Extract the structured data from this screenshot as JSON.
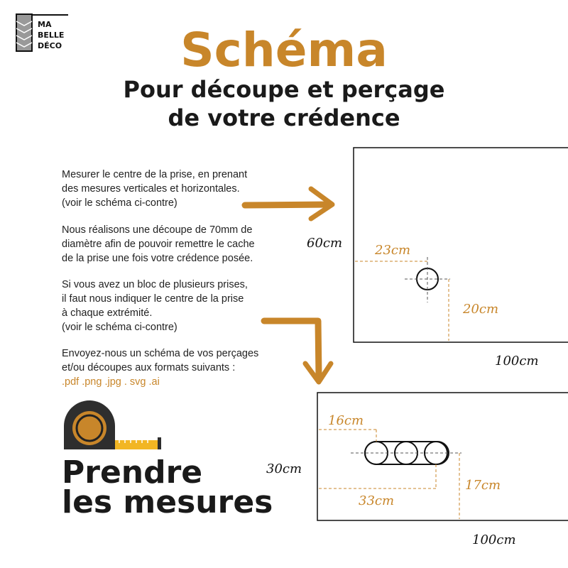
{
  "logo": {
    "lines": [
      "MA",
      "BELLE",
      "DÉCO"
    ]
  },
  "header": {
    "title": "Schéma",
    "subtitle_line1": "Pour découpe et perçage",
    "subtitle_line2": "de votre crédence"
  },
  "instructions": {
    "p1": [
      "Mesurer le centre de la prise, en prenant",
      "des mesures verticales et horizontales.",
      "(voir le schéma ci-contre)"
    ],
    "p2": [
      "Nous réalisons une découpe de 70mm de",
      "diamètre afin de pouvoir remettre le cache",
      "de la prise une fois votre crédence posée."
    ],
    "p3": [
      "Si vous avez un bloc de plusieurs prises,",
      "il faut nous indiquer le centre de la prise",
      "à chaque extrémité.",
      "(voir le schéma ci-contre)"
    ],
    "p4": [
      "Envoyez-nous un schéma de vos perçages",
      "et/ou découpes aux formats suivants :"
    ],
    "formats": ".pdf .png .jpg . svg .ai"
  },
  "diagram1": {
    "height_label": "60cm",
    "width_label": "100cm",
    "horizontal_offset": "23cm",
    "vertical_offset": "20cm"
  },
  "diagram2": {
    "height_label": "30cm",
    "width_label": "100cm",
    "first_offset": "16cm",
    "last_offset": "33cm",
    "vertical_offset": "17cm"
  },
  "footer": {
    "line1": "Prendre",
    "line2": "les mesures",
    "icon": "tape-measure-icon"
  },
  "colors": {
    "accent": "#c8862a",
    "text": "#1a1a1a"
  }
}
